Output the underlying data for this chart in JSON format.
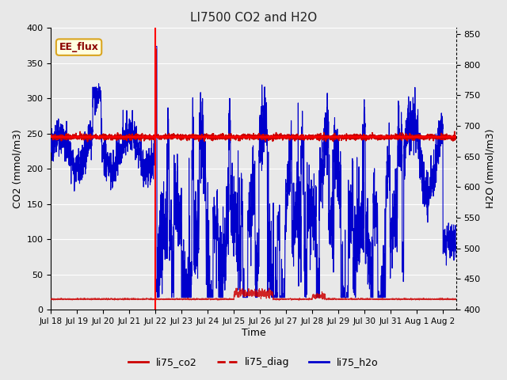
{
  "title": "LI7500 CO2 and H2O",
  "xlabel": "Time",
  "ylabel_left": "CO2 (mmol/m3)",
  "ylabel_right": "H2O (mmol/m3)",
  "annotation": "EE_flux",
  "ylim_left": [
    0,
    400
  ],
  "ylim_right": [
    400,
    860
  ],
  "yticks_left": [
    0,
    50,
    100,
    150,
    200,
    250,
    300,
    350,
    400
  ],
  "yticks_right": [
    400,
    450,
    500,
    550,
    600,
    650,
    700,
    750,
    800,
    850
  ],
  "background_color": "#e8e8e8",
  "grid_color": "white",
  "title_color": "#222222",
  "co2_color": "#cc0000",
  "diag_color": "#cc0000",
  "h2o_color": "#0000cc"
}
